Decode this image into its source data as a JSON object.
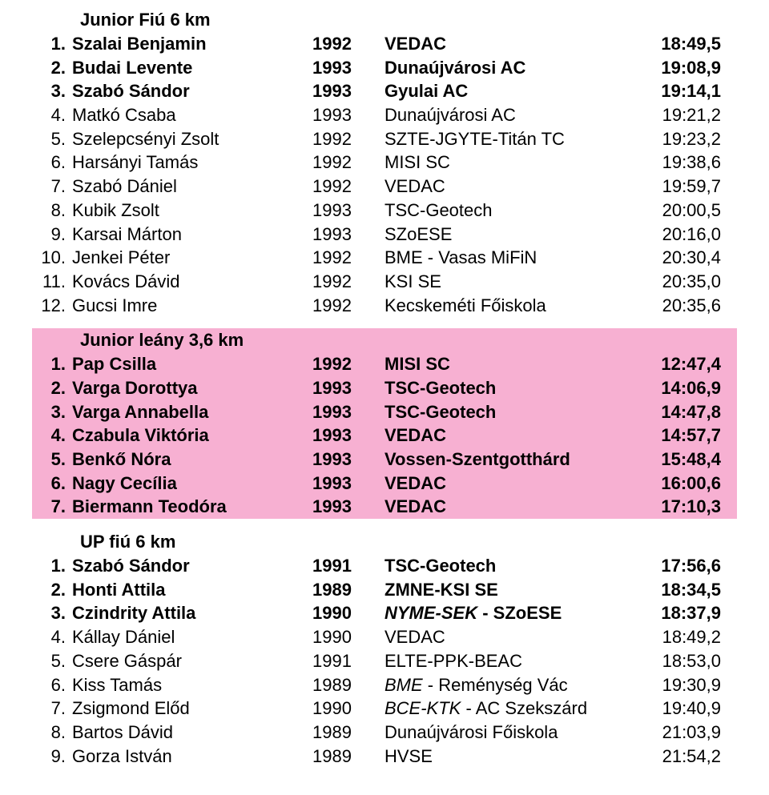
{
  "colors": {
    "background": "#ffffff",
    "pink_highlight": "#f7b0d2",
    "text": "#000000"
  },
  "sections": [
    {
      "title": "Junior Fiú 6 km",
      "highlight": false,
      "rows": [
        {
          "rank": "1.",
          "name": "Szalai Benjamin",
          "year": "1992",
          "club": "VEDAC",
          "time": "18:49,5",
          "bold": true
        },
        {
          "rank": "2.",
          "name": "Budai Levente",
          "year": "1993",
          "club": "Dunaújvárosi AC",
          "time": "19:08,9",
          "bold": true
        },
        {
          "rank": "3.",
          "name": "Szabó Sándor",
          "year": "1993",
          "club": "Gyulai AC",
          "time": "19:14,1",
          "bold": true
        },
        {
          "rank": "4.",
          "name": "Matkó Csaba",
          "year": "1993",
          "club": "Dunaújvárosi AC",
          "time": "19:21,2"
        },
        {
          "rank": "5.",
          "name": "Szelepcsényi Zsolt",
          "year": "1992",
          "club": "SZTE-JGYTE-Titán TC",
          "time": "19:23,2"
        },
        {
          "rank": "6.",
          "name": "Harsányi Tamás",
          "year": "1992",
          "club": "MISI SC",
          "time": "19:38,6"
        },
        {
          "rank": "7.",
          "name": "Szabó Dániel",
          "year": "1992",
          "club": "VEDAC",
          "time": "19:59,7"
        },
        {
          "rank": "8.",
          "name": "Kubik Zsolt",
          "year": "1993",
          "club": "TSC-Geotech",
          "time": "20:00,5"
        },
        {
          "rank": "9.",
          "name": "Karsai Márton",
          "year": "1993",
          "club": "SZoESE",
          "time": "20:16,0"
        },
        {
          "rank": "10.",
          "name": "Jenkei Péter",
          "year": "1992",
          "club": "BME - Vasas MiFiN",
          "time": "20:30,4"
        },
        {
          "rank": "11.",
          "name": "Kovács Dávid",
          "year": "1992",
          "club": "KSI SE",
          "time": "20:35,0"
        },
        {
          "rank": "12.",
          "name": "Gucsi Imre",
          "year": "1992",
          "club": "Kecskeméti Főiskola",
          "time": "20:35,6"
        }
      ]
    },
    {
      "title": "Junior leány 3,6 km",
      "highlight": true,
      "rows": [
        {
          "rank": "1.",
          "name": "Pap Csilla",
          "year": "1992",
          "club": "MISI SC",
          "time": "12:47,4",
          "bold": true
        },
        {
          "rank": "2.",
          "name": "Varga Dorottya",
          "year": "1993",
          "club": "TSC-Geotech",
          "time": "14:06,9",
          "bold": true
        },
        {
          "rank": "3.",
          "name": "Varga Annabella",
          "year": "1993",
          "club": "TSC-Geotech",
          "time": "14:47,8",
          "bold": true
        },
        {
          "rank": "4.",
          "name": "Czabula Viktória",
          "year": "1993",
          "club": "VEDAC",
          "time": "14:57,7",
          "bold": true
        },
        {
          "rank": "5.",
          "name": "Benkő Nóra",
          "year": "1993",
          "club": "Vossen-Szentgotthárd",
          "time": "15:48,4",
          "bold": true
        },
        {
          "rank": "6.",
          "name": "Nagy Cecília",
          "year": "1993",
          "club": "VEDAC",
          "time": "16:00,6",
          "bold": true
        },
        {
          "rank": "7.",
          "name": "Biermann Teodóra",
          "year": "1993",
          "club": "VEDAC",
          "time": "17:10,3",
          "bold": true
        }
      ]
    },
    {
      "title": "UP fiú 6 km",
      "highlight": false,
      "rows": [
        {
          "rank": "1.",
          "name": "Szabó Sándor",
          "year": "1991",
          "club": "TSC-Geotech",
          "time": "17:56,6",
          "bold": true
        },
        {
          "rank": "2.",
          "name": "Honti Attila",
          "year": "1989",
          "club": "ZMNE-KSI SE",
          "time": "18:34,5",
          "bold": true
        },
        {
          "rank": "3.",
          "name": "Czindrity Attila",
          "year": "1990",
          "club_italic": "NYME-SEK",
          "club_suffix": " - SZoESE",
          "time": "18:37,9",
          "bold": true
        },
        {
          "rank": "4.",
          "name": "Kállay Dániel",
          "year": "1990",
          "club": "VEDAC",
          "time": "18:49,2"
        },
        {
          "rank": "5.",
          "name": "Csere Gáspár",
          "year": "1991",
          "club": "ELTE-PPK-BEAC",
          "time": "18:53,0"
        },
        {
          "rank": "6.",
          "name": "Kiss Tamás",
          "year": "1989",
          "club_italic": "BME",
          "club_suffix": " - Reménység Vác",
          "time": "19:30,9"
        },
        {
          "rank": "7.",
          "name": "Zsigmond Előd",
          "year": "1990",
          "club_italic": "BCE-KTK",
          "club_suffix": " - AC Szekszárd",
          "time": "19:40,9"
        },
        {
          "rank": "8.",
          "name": "Bartos Dávid",
          "year": "1989",
          "club": "Dunaújvárosi Főiskola",
          "time": "21:03,9"
        },
        {
          "rank": "9.",
          "name": "Gorza István",
          "year": "1989",
          "club": "HVSE",
          "time": "21:54,2"
        }
      ]
    }
  ]
}
